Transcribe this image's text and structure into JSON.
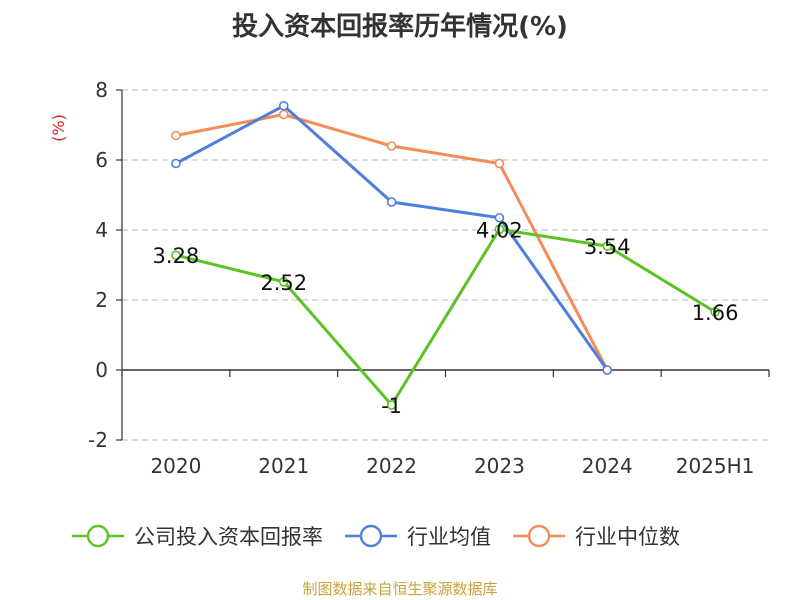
{
  "chart_data": {
    "type": "line",
    "title": "投入资本回报率历年情况(%)",
    "ylabel": "(%)",
    "categories": [
      "2020",
      "2021",
      "2022",
      "2023",
      "2024",
      "2025H1"
    ],
    "ylim": [
      -2,
      8
    ],
    "yticks": [
      -2,
      0,
      2,
      4,
      6,
      8
    ],
    "grid": true,
    "legend_position": "bottom",
    "series": [
      {
        "name": "公司投入资本回报率",
        "color": "#5bc224",
        "values": [
          3.28,
          2.52,
          -1,
          4.02,
          3.54,
          1.66
        ],
        "labels": [
          "3.28",
          "2.52",
          "-1",
          "4.02",
          "3.54",
          "1.66"
        ]
      },
      {
        "name": "行业均值",
        "color": "#4f7fdc",
        "values": [
          5.9,
          7.55,
          4.8,
          4.35,
          0,
          null
        ]
      },
      {
        "name": "行业中位数",
        "color": "#f58b57",
        "values": [
          6.7,
          7.3,
          6.4,
          5.9,
          0,
          null
        ]
      }
    ]
  },
  "source_text": "制图数据来自恒生聚源数据库"
}
